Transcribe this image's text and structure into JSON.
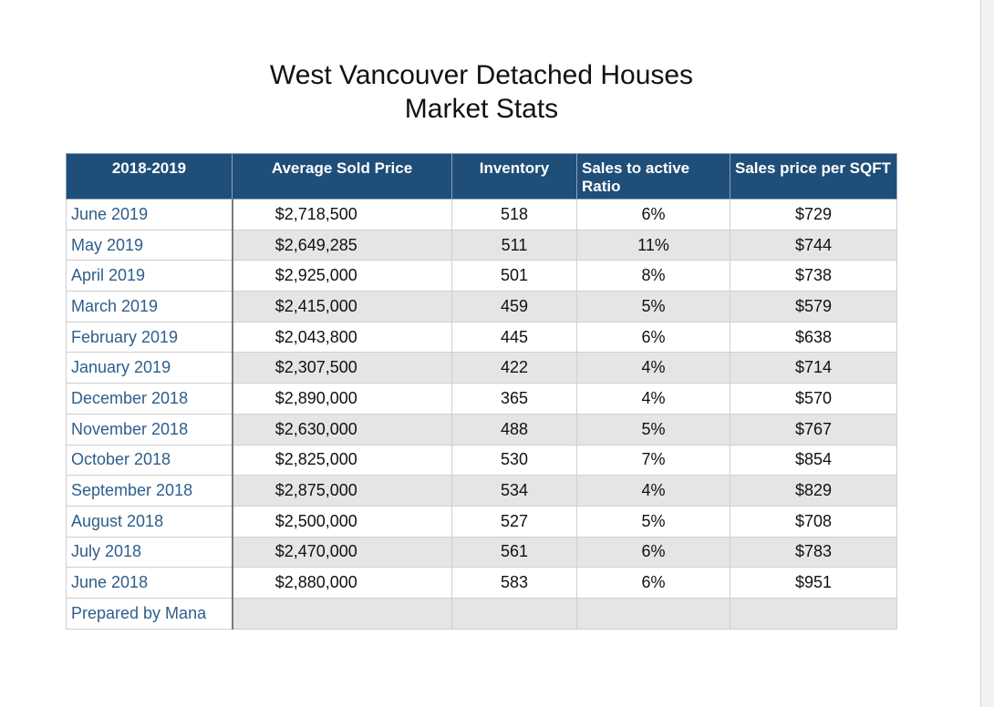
{
  "title_line1": "West Vancouver Detached Houses",
  "title_line2": "Market Stats",
  "headers": {
    "period": "2018-2019",
    "avg_price": "Average Sold Price",
    "inventory": "Inventory",
    "ratio": "Sales to active Ratio",
    "ppsf": "Sales price per SQFT"
  },
  "rows": [
    {
      "month": "June 2019",
      "price": "$2,718,500",
      "inventory": "518",
      "ratio": "6%",
      "ppsf": "$729"
    },
    {
      "month": "May 2019",
      "price": "$2,649,285",
      "inventory": "511",
      "ratio": "11%",
      "ppsf": "$744"
    },
    {
      "month": "April 2019",
      "price": "$2,925,000",
      "inventory": "501",
      "ratio": "8%",
      "ppsf": "$738"
    },
    {
      "month": "March 2019",
      "price": "$2,415,000",
      "inventory": "459",
      "ratio": "5%",
      "ppsf": "$579"
    },
    {
      "month": "February 2019",
      "price": "$2,043,800",
      "inventory": "445",
      "ratio": "6%",
      "ppsf": "$638"
    },
    {
      "month": "January 2019",
      "price": "$2,307,500",
      "inventory": "422",
      "ratio": "4%",
      "ppsf": "$714"
    },
    {
      "month": "December 2018",
      "price": "$2,890,000",
      "inventory": "365",
      "ratio": "4%",
      "ppsf": "$570"
    },
    {
      "month": "November 2018",
      "price": "$2,630,000",
      "inventory": "488",
      "ratio": "5%",
      "ppsf": "$767"
    },
    {
      "month": "October 2018",
      "price": "$2,825,000",
      "inventory": "530",
      "ratio": "7%",
      "ppsf": "$854"
    },
    {
      "month": "September 2018",
      "price": "$2,875,000",
      "inventory": "534",
      "ratio": "4%",
      "ppsf": "$829"
    },
    {
      "month": "August 2018",
      "price": "$2,500,000",
      "inventory": "527",
      "ratio": "5%",
      "ppsf": "$708"
    },
    {
      "month": "July 2018",
      "price": "$2,470,000",
      "inventory": "561",
      "ratio": "6%",
      "ppsf": "$783"
    },
    {
      "month": "June 2018",
      "price": "$2,880,000",
      "inventory": "583",
      "ratio": "6%",
      "ppsf": "$951"
    }
  ],
  "footer": "Prepared by Mana",
  "colors": {
    "header_bg": "#1f4e79",
    "month_text": "#2e5e8c",
    "stripe": "#e5e5e5"
  }
}
